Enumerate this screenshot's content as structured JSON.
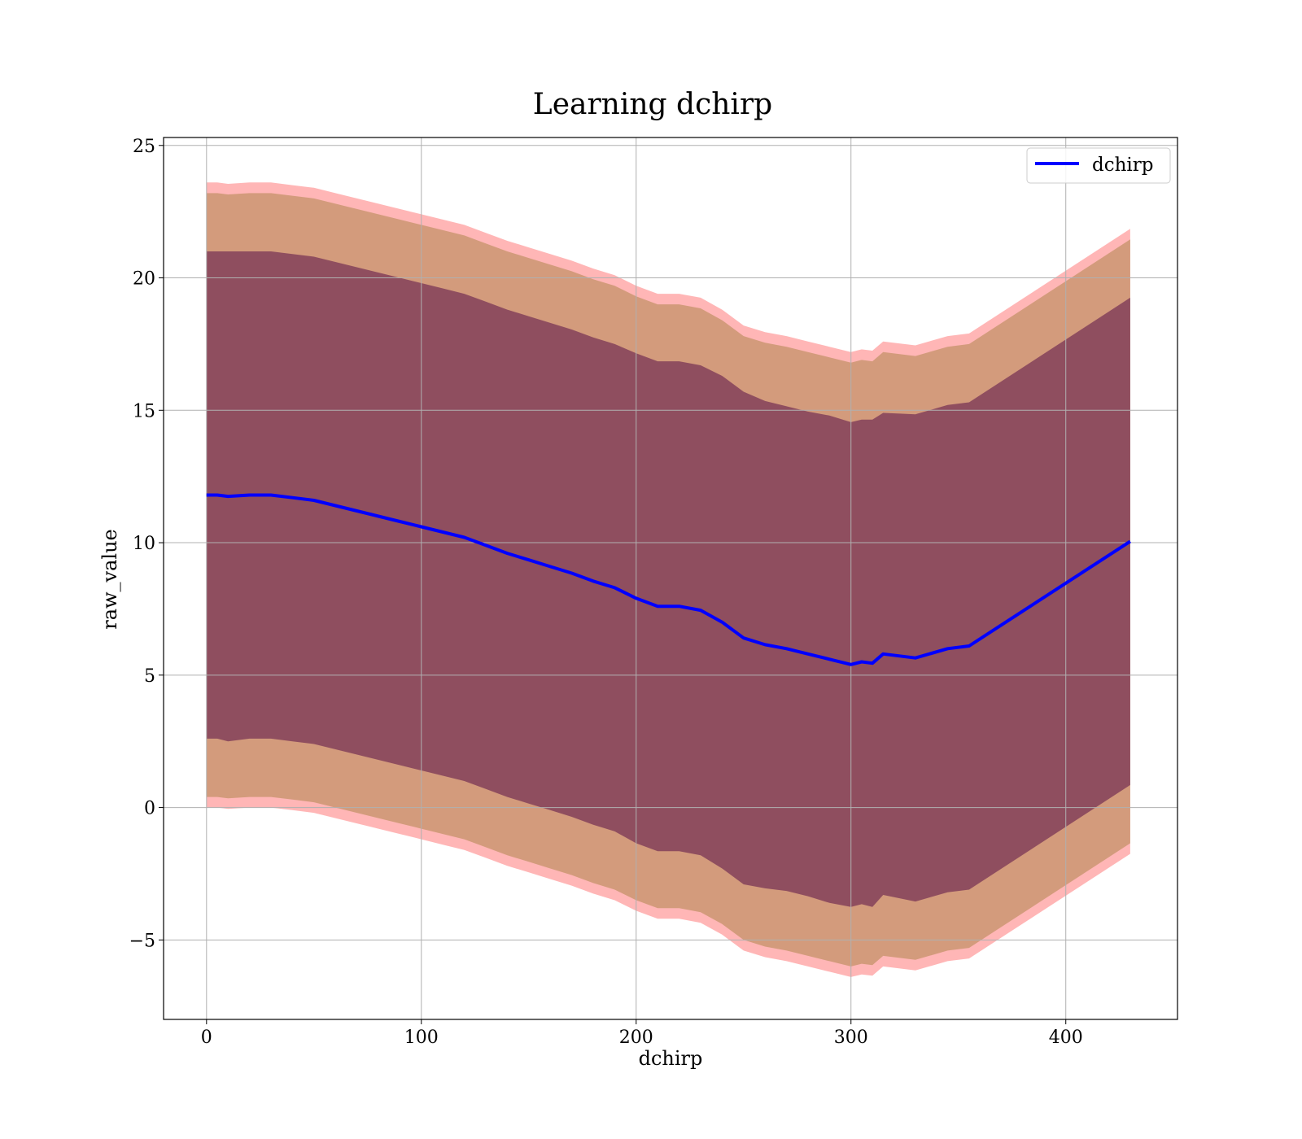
{
  "chart_data": {
    "type": "line",
    "title": "Learning dchirp",
    "xlabel": "dchirp",
    "ylabel": "raw_value",
    "xlim": [
      -20,
      452
    ],
    "ylim": [
      -8,
      25.3
    ],
    "xticks": [
      0,
      100,
      200,
      300,
      400
    ],
    "yticks": [
      -5,
      0,
      5,
      10,
      15,
      20,
      25
    ],
    "xtick_labels": [
      "0",
      "100",
      "200",
      "300",
      "400"
    ],
    "ytick_labels": [
      "−5",
      "0",
      "5",
      "10",
      "15",
      "20",
      "25"
    ],
    "grid": true,
    "legend_position": "top-right",
    "series": [
      {
        "name": "dchirp",
        "color": "#0000ff",
        "x": [
          0,
          5,
          10,
          20,
          30,
          40,
          50,
          60,
          70,
          80,
          90,
          100,
          110,
          120,
          130,
          140,
          150,
          160,
          170,
          180,
          190,
          200,
          210,
          220,
          230,
          240,
          250,
          260,
          270,
          280,
          290,
          300,
          305,
          310,
          315,
          330,
          345,
          355,
          430
        ],
        "values": [
          11.8,
          11.8,
          11.75,
          11.8,
          11.8,
          11.7,
          11.6,
          11.4,
          11.2,
          11.0,
          10.8,
          10.6,
          10.4,
          10.2,
          9.9,
          9.6,
          9.35,
          9.1,
          8.85,
          8.55,
          8.3,
          7.9,
          7.6,
          7.6,
          7.45,
          7.0,
          6.4,
          6.15,
          6.0,
          5.8,
          5.6,
          5.4,
          5.5,
          5.45,
          5.8,
          5.65,
          6.0,
          6.1,
          10.05
        ]
      }
    ],
    "bands": [
      {
        "name": "inner",
        "color": "#8b4a5e",
        "upper_offset": [
          9.2,
          9.2,
          9.25,
          9.2,
          9.2,
          9.2,
          9.2,
          9.2,
          9.2,
          9.2,
          9.2,
          9.2,
          9.2,
          9.2,
          9.2,
          9.2,
          9.2,
          9.2,
          9.2,
          9.2,
          9.2,
          9.25,
          9.25,
          9.25,
          9.25,
          9.3,
          9.3,
          9.2,
          9.15,
          9.15,
          9.2,
          9.15,
          9.15,
          9.2,
          9.1,
          9.2,
          9.2,
          9.2,
          9.2
        ],
        "lower_offset": [
          9.2,
          9.2,
          9.25,
          9.2,
          9.2,
          9.2,
          9.2,
          9.2,
          9.2,
          9.2,
          9.2,
          9.2,
          9.2,
          9.2,
          9.2,
          9.2,
          9.2,
          9.2,
          9.2,
          9.2,
          9.2,
          9.25,
          9.25,
          9.25,
          9.25,
          9.3,
          9.3,
          9.2,
          9.15,
          9.15,
          9.2,
          9.15,
          9.15,
          9.2,
          9.1,
          9.2,
          9.2,
          9.2,
          9.2
        ]
      },
      {
        "name": "middle",
        "color": "#d19a79",
        "upper_offset": 11.4,
        "lower_offset": 11.4
      },
      {
        "name": "outer",
        "color": "#ffb2b2",
        "upper_offset": 11.8,
        "lower_offset": 11.8
      }
    ]
  }
}
